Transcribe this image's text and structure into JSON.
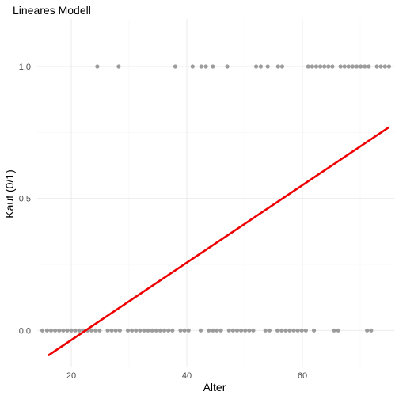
{
  "chart_data": {
    "type": "scatter",
    "title": "Lineares Modell",
    "xlabel": "Alter",
    "ylabel": "Kauf (0/1)",
    "xlim": [
      14.1,
      75.9
    ],
    "ylim": [
      -0.14,
      1.18
    ],
    "x_ticks": [
      20,
      40,
      60
    ],
    "x_tick_labels": [
      "20",
      "40",
      "60"
    ],
    "x_minor_ticks": [
      30,
      50,
      70
    ],
    "y_ticks": [
      0,
      0.5,
      1.0
    ],
    "y_tick_labels": [
      "0.0",
      "0.5",
      "1.0"
    ],
    "y_minor_ticks": [
      0.25,
      0.75
    ],
    "grid": true,
    "point_color": "#8c8c8c",
    "line_color": "#ee0000",
    "series": [
      {
        "kind": "points",
        "x": [
          15,
          15.8,
          16.5,
          17.2,
          17.9,
          18.6,
          19.3,
          20,
          20.7,
          21.4,
          22.1,
          22.8,
          23.5,
          24.2,
          24.9,
          26.3,
          27,
          27.7,
          28.4,
          29.8,
          30.5,
          31.2,
          31.9,
          32.6,
          33.3,
          34,
          34.7,
          35.4,
          36.1,
          36.8,
          37.5,
          38.9,
          39.6,
          40.3,
          42.4,
          43.8,
          44.5,
          45.2,
          45.9,
          47.3,
          48,
          48.7,
          49.4,
          50.1,
          50.8,
          51.5,
          53.6,
          54.3,
          55.7,
          56.4,
          57.1,
          57.8,
          58.5,
          59.2,
          59.9,
          60.6,
          62,
          65.5,
          66.2,
          71.2,
          71.9,
          24.5,
          28.2,
          38,
          41,
          42.5,
          43.3,
          44.5,
          47,
          52,
          52.8,
          54,
          55.8,
          56.5,
          61,
          61.7,
          62.4,
          63.1,
          63.8,
          64.5,
          65.2,
          66.6,
          67.3,
          68,
          68.7,
          69.4,
          70.1,
          70.8,
          71.5,
          72.9,
          73.6,
          74.3,
          75
        ],
        "y": [
          0,
          0,
          0,
          0,
          0,
          0,
          0,
          0,
          0,
          0,
          0,
          0,
          0,
          0,
          0,
          0,
          0,
          0,
          0,
          0,
          0,
          0,
          0,
          0,
          0,
          0,
          0,
          0,
          0,
          0,
          0,
          0,
          0,
          0,
          0,
          0,
          0,
          0,
          0,
          0,
          0,
          0,
          0,
          0,
          0,
          0,
          0,
          0,
          0,
          0,
          0,
          0,
          0,
          0,
          0,
          0,
          0,
          0,
          0,
          0,
          0,
          1,
          1,
          1,
          1,
          1,
          1,
          1,
          1,
          1,
          1,
          1,
          1,
          1,
          1,
          1,
          1,
          1,
          1,
          1,
          1,
          1,
          1,
          1,
          1,
          1,
          1,
          1,
          1,
          1,
          1,
          1,
          1
        ]
      },
      {
        "kind": "line",
        "x": [
          16,
          75
        ],
        "y": [
          -0.095,
          0.77
        ]
      }
    ]
  }
}
